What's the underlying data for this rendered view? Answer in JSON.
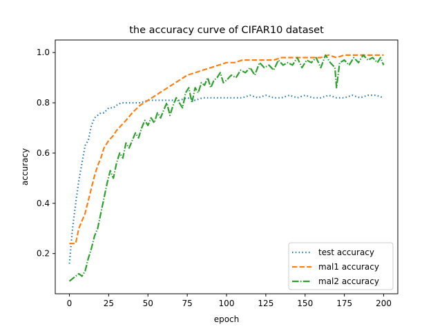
{
  "chart_data": {
    "type": "line",
    "title": "the accuracy curve of CIFAR10 dataset",
    "xlabel": "epoch",
    "ylabel": "accuracy",
    "xlim": [
      -9,
      209
    ],
    "ylim": [
      0.04,
      1.05
    ],
    "xticks": [
      0,
      25,
      50,
      75,
      100,
      125,
      150,
      175,
      200
    ],
    "yticks": [
      0.2,
      0.4,
      0.6,
      0.8,
      1.0
    ],
    "ytick_labels": [
      "0.2",
      "0.4",
      "0.6",
      "0.8",
      "1.0"
    ],
    "legend_position": "lower-right",
    "grid": false,
    "series": [
      {
        "name": "test accuracy",
        "color": "#1f77b4",
        "style": "dotted",
        "x": [
          0,
          2,
          4,
          6,
          8,
          10,
          12,
          14,
          16,
          18,
          20,
          22,
          25,
          28,
          30,
          33,
          36,
          40,
          45,
          50,
          55,
          60,
          65,
          70,
          75,
          80,
          85,
          90,
          95,
          100,
          105,
          110,
          115,
          120,
          125,
          130,
          135,
          140,
          145,
          150,
          155,
          160,
          165,
          170,
          175,
          180,
          185,
          190,
          195,
          200
        ],
        "y": [
          0.16,
          0.3,
          0.4,
          0.49,
          0.56,
          0.63,
          0.65,
          0.71,
          0.74,
          0.75,
          0.76,
          0.76,
          0.78,
          0.78,
          0.79,
          0.8,
          0.8,
          0.8,
          0.8,
          0.81,
          0.81,
          0.81,
          0.81,
          0.81,
          0.82,
          0.81,
          0.82,
          0.82,
          0.82,
          0.82,
          0.82,
          0.82,
          0.83,
          0.82,
          0.83,
          0.82,
          0.82,
          0.83,
          0.82,
          0.83,
          0.82,
          0.82,
          0.83,
          0.82,
          0.82,
          0.83,
          0.82,
          0.83,
          0.83,
          0.82
        ]
      },
      {
        "name": "mal1 accuracy",
        "color": "#ff7f0e",
        "style": "dashed",
        "x": [
          0,
          2,
          4,
          6,
          8,
          10,
          12,
          14,
          16,
          18,
          20,
          22,
          25,
          28,
          30,
          33,
          36,
          40,
          45,
          50,
          55,
          60,
          65,
          70,
          75,
          80,
          85,
          90,
          95,
          100,
          105,
          110,
          115,
          120,
          125,
          130,
          135,
          140,
          145,
          150,
          155,
          160,
          165,
          170,
          175,
          180,
          185,
          190,
          195,
          200
        ],
        "y": [
          0.24,
          0.24,
          0.24,
          0.3,
          0.33,
          0.36,
          0.41,
          0.46,
          0.51,
          0.55,
          0.58,
          0.62,
          0.65,
          0.67,
          0.69,
          0.71,
          0.73,
          0.76,
          0.79,
          0.81,
          0.83,
          0.85,
          0.87,
          0.89,
          0.91,
          0.92,
          0.93,
          0.94,
          0.95,
          0.96,
          0.96,
          0.97,
          0.97,
          0.97,
          0.97,
          0.97,
          0.98,
          0.98,
          0.98,
          0.98,
          0.98,
          0.98,
          0.99,
          0.98,
          0.99,
          0.99,
          0.99,
          0.99,
          0.99,
          0.99
        ]
      },
      {
        "name": "mal2 accuracy",
        "color": "#2ca02c",
        "style": "dashdot",
        "x": [
          0,
          2,
          4,
          6,
          8,
          10,
          12,
          14,
          16,
          18,
          20,
          22,
          24,
          26,
          28,
          30,
          32,
          34,
          36,
          38,
          40,
          42,
          44,
          46,
          48,
          50,
          52,
          54,
          56,
          58,
          60,
          62,
          64,
          66,
          68,
          70,
          72,
          74,
          76,
          78,
          80,
          82,
          84,
          86,
          88,
          90,
          92,
          94,
          96,
          98,
          100,
          103,
          106,
          109,
          112,
          115,
          118,
          121,
          124,
          127,
          130,
          133,
          136,
          139,
          142,
          145,
          148,
          151,
          154,
          157,
          160,
          163,
          166,
          169,
          170,
          172,
          175,
          178,
          181,
          184,
          187,
          190,
          193,
          196,
          198,
          200
        ],
        "y": [
          0.09,
          0.1,
          0.11,
          0.12,
          0.11,
          0.13,
          0.18,
          0.22,
          0.27,
          0.3,
          0.36,
          0.42,
          0.48,
          0.53,
          0.5,
          0.56,
          0.6,
          0.58,
          0.64,
          0.62,
          0.65,
          0.68,
          0.66,
          0.7,
          0.73,
          0.71,
          0.74,
          0.72,
          0.76,
          0.74,
          0.77,
          0.8,
          0.75,
          0.79,
          0.82,
          0.8,
          0.78,
          0.84,
          0.86,
          0.8,
          0.86,
          0.84,
          0.88,
          0.87,
          0.9,
          0.86,
          0.89,
          0.9,
          0.92,
          0.88,
          0.89,
          0.91,
          0.9,
          0.93,
          0.92,
          0.94,
          0.91,
          0.96,
          0.94,
          0.95,
          0.93,
          0.97,
          0.95,
          0.96,
          0.95,
          0.98,
          0.94,
          0.97,
          0.96,
          0.98,
          0.94,
          0.99,
          0.96,
          0.94,
          0.86,
          0.96,
          0.97,
          0.95,
          0.98,
          0.96,
          0.99,
          0.97,
          0.98,
          0.96,
          0.98,
          0.95
        ]
      }
    ]
  }
}
